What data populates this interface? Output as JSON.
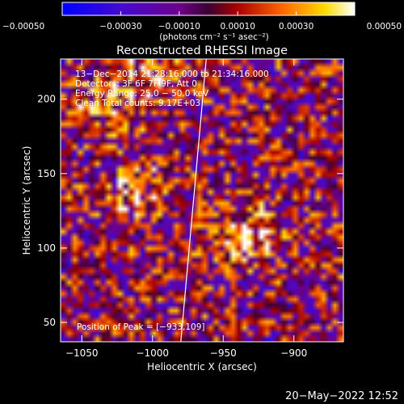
{
  "chart_data": {
    "type": "heatmap",
    "title": "Reconstructed RHESSI Image",
    "xlabel": "Heliocentric X (arcsec)",
    "ylabel": "Heliocentric Y (arcsec)",
    "xlim": [
      -1065,
      -865
    ],
    "ylim": [
      37,
      227
    ],
    "x_ticks": [
      -1050,
      -1000,
      -950,
      -900
    ],
    "x_tick_labels": [
      "−1050",
      "−1000",
      "−950",
      "−900"
    ],
    "y_ticks": [
      50,
      100,
      150,
      200
    ],
    "y_tick_labels": [
      "50",
      "100",
      "150",
      "200"
    ],
    "colorbar": {
      "range": [
        -0.0005,
        0.0005
      ],
      "ticks": [
        -0.0005,
        -0.0003,
        -0.0001,
        0.0001,
        0.0003,
        0.0005
      ],
      "tick_labels": [
        "−0.00050",
        "−0.00030",
        "−0.00010",
        "0.00010",
        "0.00030",
        "0.00050"
      ],
      "units_label": "(photons cm⁻² s⁻¹ asec⁻²)"
    },
    "info_lines": [
      "13−Dec−2014 21:28:16.000 to 21:34:16.000",
      "Detectors: 3F 6F 7F 9F, Att 0",
      "Energy Range: 25.0 − 50.0 keV",
      "Clean    Total counts: 9.17E+03"
    ],
    "peak_label": "Position of Peak = [−933,109]",
    "peak": [
      -933,
      109
    ],
    "sources": [
      {
        "x": -933,
        "y": 109,
        "amplitude": 0.0005
      },
      {
        "x": -1010,
        "y": 140,
        "amplitude": 0.00034
      },
      {
        "x": -1005,
        "y": 215,
        "amplitude": 0.0004
      },
      {
        "x": -1040,
        "y": 195,
        "amplitude": 0.00026
      }
    ],
    "limb": [
      [
        -962,
        227
      ],
      [
        -980,
        37
      ]
    ],
    "colors": {
      "limb": "#ffffff",
      "background": "#000000"
    },
    "grid": false
  },
  "footer": {
    "timestamp": "20−May−2022 12:52"
  }
}
